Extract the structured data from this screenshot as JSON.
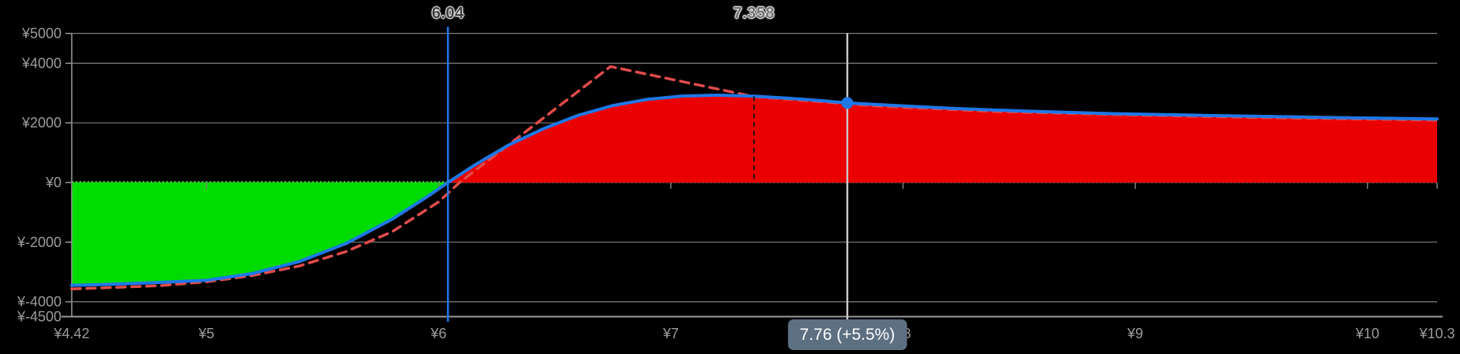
{
  "chart_data": {
    "type": "area",
    "x_axis": {
      "min": 4.42,
      "max": 10.3,
      "ticks": [
        {
          "label": "¥4.42",
          "value": 4.42
        },
        {
          "label": "¥5",
          "value": 5
        },
        {
          "label": "¥6",
          "value": 6
        },
        {
          "label": "¥7",
          "value": 7
        },
        {
          "label": "¥8",
          "value": 8
        },
        {
          "label": "¥9",
          "value": 9
        },
        {
          "label": "¥10",
          "value": 10
        },
        {
          "label": "¥10.3",
          "value": 10.3
        }
      ]
    },
    "y_axis": {
      "min": -4500,
      "max": 5000,
      "ticks": [
        {
          "label": "¥5000",
          "value": 5000
        },
        {
          "label": "¥4000",
          "value": 4000
        },
        {
          "label": "¥2000",
          "value": 2000
        },
        {
          "label": "¥0",
          "value": 0
        },
        {
          "label": "¥-2000",
          "value": -2000
        },
        {
          "label": "¥-4000",
          "value": -4000
        },
        {
          "label": "¥-4500",
          "value": -4500
        }
      ]
    },
    "series": [
      {
        "name": "solid-value-curve",
        "style": "solid",
        "color": "#1e78e8",
        "width": 4,
        "points": [
          [
            4.42,
            -3450
          ],
          [
            4.6,
            -3410
          ],
          [
            4.8,
            -3350
          ],
          [
            5,
            -3280
          ],
          [
            5.2,
            -3050
          ],
          [
            5.4,
            -2650
          ],
          [
            5.6,
            -2050
          ],
          [
            5.8,
            -1230
          ],
          [
            5.95,
            -480
          ],
          [
            6.04,
            0
          ],
          [
            6.15,
            560
          ],
          [
            6.3,
            1250
          ],
          [
            6.45,
            1800
          ],
          [
            6.6,
            2250
          ],
          [
            6.75,
            2580
          ],
          [
            6.9,
            2790
          ],
          [
            7.05,
            2900
          ],
          [
            7.2,
            2930
          ],
          [
            7.358,
            2895
          ],
          [
            7.5,
            2830
          ],
          [
            7.65,
            2745
          ],
          [
            7.76,
            2667
          ],
          [
            7.95,
            2590
          ],
          [
            8.2,
            2490
          ],
          [
            8.5,
            2400
          ],
          [
            8.9,
            2310
          ],
          [
            9.3,
            2250
          ],
          [
            9.8,
            2185
          ],
          [
            10.3,
            2130
          ]
        ]
      },
      {
        "name": "dashed-payoff-line",
        "style": "dashed",
        "color": "#e14b4b",
        "width": 3.5,
        "points": [
          [
            4.42,
            -3570
          ],
          [
            4.6,
            -3520
          ],
          [
            4.8,
            -3460
          ],
          [
            5,
            -3330
          ],
          [
            5.2,
            -3120
          ],
          [
            5.4,
            -2800
          ],
          [
            5.6,
            -2320
          ],
          [
            5.8,
            -1650
          ],
          [
            6,
            -650
          ],
          [
            6.09,
            0
          ],
          [
            6.74,
            3890
          ],
          [
            7.358,
            2880
          ],
          [
            7.9,
            2560
          ],
          [
            8.4,
            2380
          ],
          [
            9,
            2260
          ],
          [
            9.6,
            2170
          ],
          [
            10.3,
            2090
          ]
        ]
      }
    ],
    "fills": {
      "baseline": 0,
      "split_x": 6.04,
      "loss_color": "#00dc00",
      "profit_color": "#ea0000"
    },
    "markers": {
      "breakeven": {
        "label": "6.04",
        "x": 6.04,
        "line_color": "#1e78e8"
      },
      "reference": {
        "label": "7.358",
        "x": 7.358,
        "line_color": "#111111",
        "style": "dashed",
        "top_value": 2895
      },
      "crosshair": {
        "x": 7.76,
        "y": 2667,
        "line_color": "#c8c8c8",
        "dot_color": "#1e78e8",
        "tooltip": {
          "text": "7.76 (+5.5%)",
          "bg": "#5d7082",
          "fg": "#ffffff"
        }
      }
    },
    "colors": {
      "background": "#000000",
      "grid": "#7e7e7e",
      "axis": "#9a9a9a",
      "tick_label": "#9c9c9c"
    },
    "grid": true,
    "legend": null,
    "title": ""
  }
}
